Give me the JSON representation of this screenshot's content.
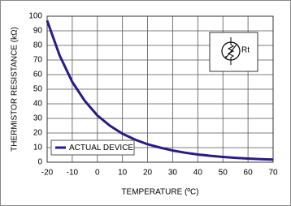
{
  "chart_data": {
    "type": "line",
    "x_label": "TEMPERATURE (ºC)",
    "y_label": "THERMISTOR RESISTANCE (kΩ)",
    "annotation": "Rt",
    "x": [
      -20,
      -15,
      -10,
      -5,
      0,
      5,
      10,
      15,
      20,
      25,
      30,
      35,
      40,
      45,
      50,
      55,
      60,
      65,
      70
    ],
    "series": [
      {
        "name": "ACTUAL DEVICE",
        "color": "#2a1a86",
        "values": [
          97,
          73,
          55,
          42,
          32,
          25,
          19.5,
          15.5,
          12.3,
          10,
          8,
          6.5,
          5.3,
          4.4,
          3.6,
          3,
          2.5,
          2.1,
          1.8
        ]
      }
    ],
    "xlim": [
      -20,
      70
    ],
    "xticks": [
      -20,
      -10,
      0,
      10,
      20,
      30,
      40,
      50,
      60,
      70
    ],
    "ylim": [
      0,
      100
    ],
    "yticks": [
      0,
      10,
      20,
      30,
      40,
      50,
      60,
      70,
      80,
      90,
      100
    ],
    "grid": true,
    "legend": "lower left"
  }
}
